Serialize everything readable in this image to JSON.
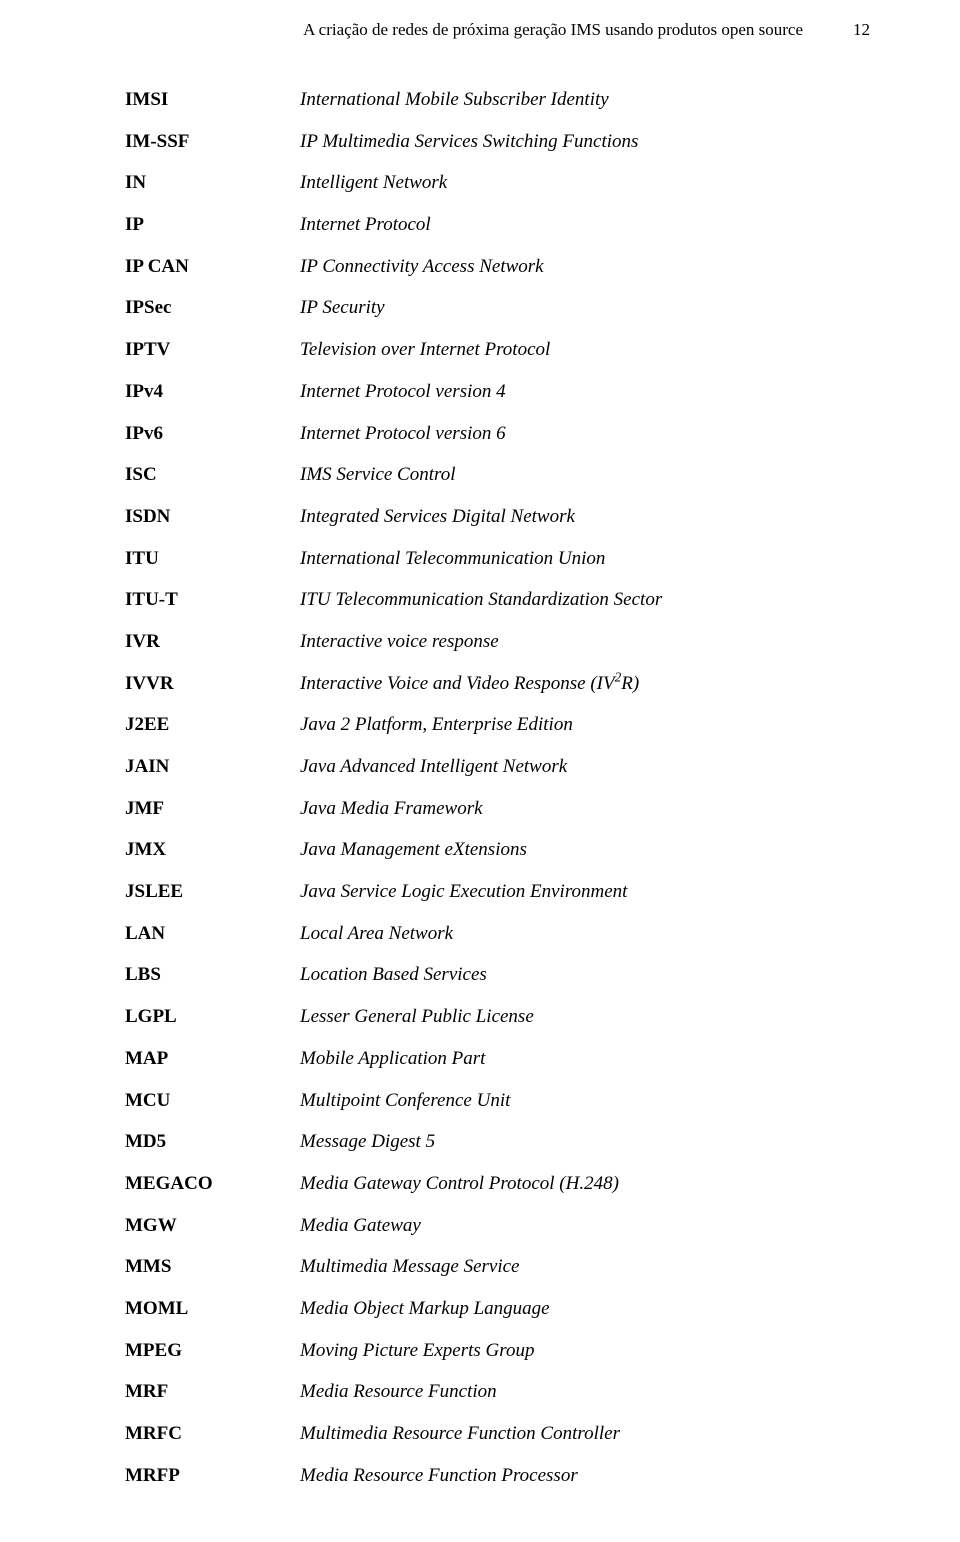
{
  "header": {
    "title": "A criação de redes de próxima geração IMS usando produtos open source",
    "page_number": "12"
  },
  "entries": [
    {
      "abbr": "IMSI",
      "def": "International Mobile Subscriber Identity"
    },
    {
      "abbr": "IM-SSF",
      "def": "IP Multimedia Services Switching Functions"
    },
    {
      "abbr": "IN",
      "def": "Intelligent Network"
    },
    {
      "abbr": "IP",
      "def": "Internet Protocol"
    },
    {
      "abbr": "IP CAN",
      "def": "IP Connectivity Access Network"
    },
    {
      "abbr": "IPSec",
      "def": "IP Security"
    },
    {
      "abbr": "IPTV",
      "def": "Television over Internet Protocol"
    },
    {
      "abbr": "IPv4",
      "def": "Internet Protocol version 4"
    },
    {
      "abbr": "IPv6",
      "def": "Internet Protocol version 6"
    },
    {
      "abbr": "ISC",
      "def": "IMS Service Control"
    },
    {
      "abbr": "ISDN",
      "def": "Integrated Services Digital Network"
    },
    {
      "abbr": "ITU",
      "def": "International Telecommunication Union"
    },
    {
      "abbr": "ITU-T",
      "def": "ITU Telecommunication Standardization Sector"
    },
    {
      "abbr": "IVR",
      "def": "Interactive voice response"
    },
    {
      "abbr": "IVVR",
      "def": "Interactive Voice and Video Response (IV",
      "sup": "2",
      "def_after": "R)"
    },
    {
      "abbr": "J2EE",
      "def": "Java 2 Platform, Enterprise Edition"
    },
    {
      "abbr": "JAIN",
      "def": "Java Advanced Intelligent Network"
    },
    {
      "abbr": "JMF",
      "def": "Java Media Framework"
    },
    {
      "abbr": "JMX",
      "def": "Java Management eXtensions"
    },
    {
      "abbr": "JSLEE",
      "def": "Java Service Logic Execution Environment"
    },
    {
      "abbr": "LAN",
      "def": "Local Area Network"
    },
    {
      "abbr": "LBS",
      "def": "Location Based Services"
    },
    {
      "abbr": "LGPL",
      "def": "Lesser General Public License"
    },
    {
      "abbr": "MAP",
      "def": "Mobile Application Part"
    },
    {
      "abbr": "MCU",
      "def": "Multipoint Conference Unit"
    },
    {
      "abbr": "MD5",
      "def": "Message Digest 5"
    },
    {
      "abbr": "MEGACO",
      "def": "Media Gateway Control Protocol (H.248)"
    },
    {
      "abbr": "MGW",
      "def": "Media Gateway"
    },
    {
      "abbr": "MMS",
      "def": "Multimedia Message Service"
    },
    {
      "abbr": "MOML",
      "def": "Media Object Markup Language"
    },
    {
      "abbr": "MPEG",
      "def": "Moving Picture Experts Group"
    },
    {
      "abbr": "MRF",
      "def": "Media Resource Function"
    },
    {
      "abbr": "MRFC",
      "def": "Multimedia Resource Function Controller"
    },
    {
      "abbr": "MRFP",
      "def": "Media Resource Function Processor"
    }
  ]
}
